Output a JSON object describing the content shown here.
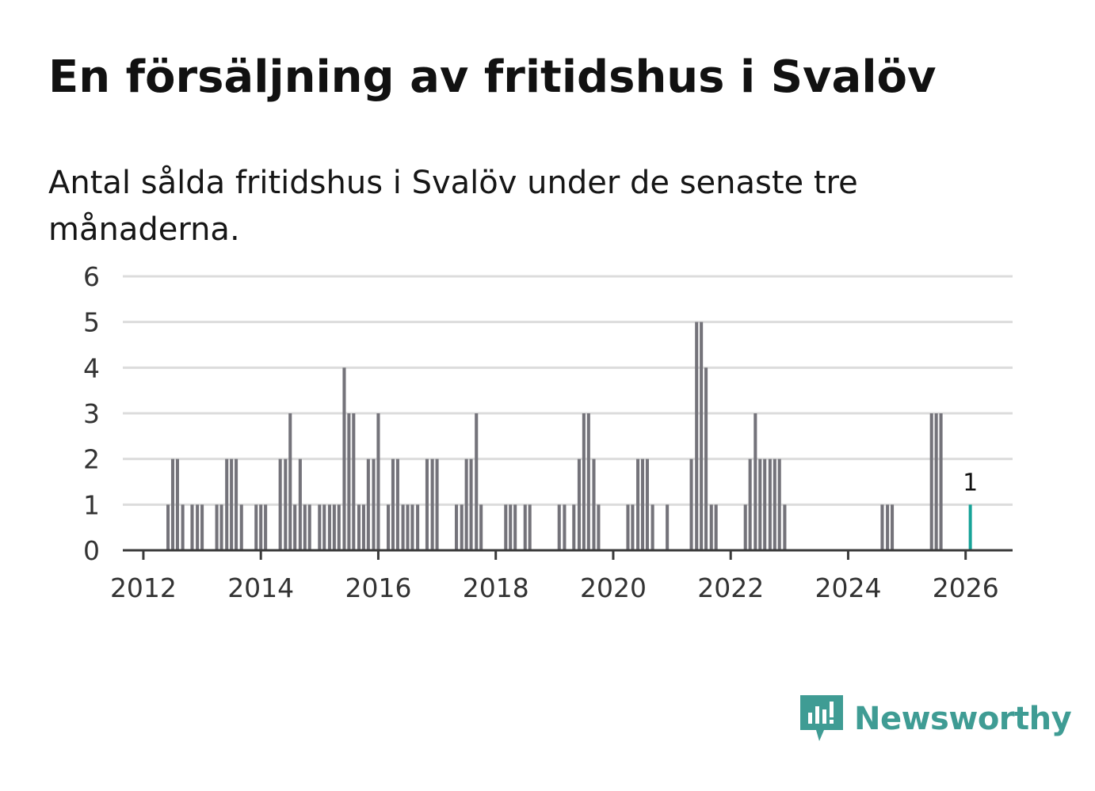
{
  "title": "En försäljning av fritidshus i Svalöv",
  "subtitle": "Antal sålda fritidshus i Svalöv under de senaste tre månaderna.",
  "brand": {
    "name": "Newsworthy",
    "color": "#3f9c94"
  },
  "colors": {
    "bar": "#74737a",
    "highlight": "#17a398",
    "grid": "#dcdcdc",
    "axis": "#3a3a3a",
    "text": "#333333"
  },
  "chart_data": {
    "type": "bar",
    "title": "En försäljning av fritidshus i Svalöv",
    "xlabel": "",
    "ylabel": "",
    "ylim": [
      0,
      6
    ],
    "yticks": [
      "0",
      "1",
      "2",
      "3",
      "4",
      "5",
      "6"
    ],
    "xlim": [
      2011.65,
      2026.8
    ],
    "xticks": [
      "2012",
      "2014",
      "2016",
      "2018",
      "2020",
      "2022",
      "2024",
      "2026"
    ],
    "bar_width_years": 0.055,
    "grid": true,
    "x": [
      2012.42,
      2012.5,
      2012.58,
      2012.67,
      2012.83,
      2012.92,
      2013.0,
      2013.25,
      2013.33,
      2013.42,
      2013.5,
      2013.58,
      2013.67,
      2013.92,
      2014.0,
      2014.08,
      2014.33,
      2014.42,
      2014.5,
      2014.58,
      2014.67,
      2014.75,
      2014.83,
      2015.0,
      2015.08,
      2015.17,
      2015.25,
      2015.33,
      2015.42,
      2015.5,
      2015.58,
      2015.67,
      2015.75,
      2015.83,
      2015.92,
      2016.0,
      2016.17,
      2016.25,
      2016.33,
      2016.42,
      2016.5,
      2016.58,
      2016.67,
      2016.83,
      2016.92,
      2017.0,
      2017.33,
      2017.42,
      2017.5,
      2017.58,
      2017.67,
      2017.75,
      2018.17,
      2018.25,
      2018.33,
      2018.5,
      2018.58,
      2019.08,
      2019.17,
      2019.33,
      2019.42,
      2019.5,
      2019.58,
      2019.67,
      2019.75,
      2020.25,
      2020.33,
      2020.42,
      2020.5,
      2020.58,
      2020.67,
      2020.92,
      2021.33,
      2021.42,
      2021.5,
      2021.58,
      2021.67,
      2021.75,
      2022.25,
      2022.33,
      2022.42,
      2022.5,
      2022.58,
      2022.67,
      2022.75,
      2022.83,
      2022.92,
      2024.58,
      2024.67,
      2024.75,
      2025.42,
      2025.5,
      2025.58,
      2026.08
    ],
    "values": [
      1,
      2,
      2,
      1,
      1,
      1,
      1,
      1,
      1,
      2,
      2,
      2,
      1,
      1,
      1,
      1,
      2,
      2,
      3,
      1,
      2,
      1,
      1,
      1,
      1,
      1,
      1,
      1,
      4,
      3,
      3,
      1,
      1,
      2,
      2,
      3,
      1,
      2,
      2,
      1,
      1,
      1,
      1,
      2,
      2,
      2,
      1,
      1,
      2,
      2,
      3,
      1,
      1,
      1,
      1,
      1,
      1,
      1,
      1,
      1,
      2,
      3,
      3,
      2,
      1,
      1,
      1,
      2,
      2,
      2,
      1,
      1,
      2,
      5,
      5,
      4,
      1,
      1,
      1,
      2,
      3,
      2,
      2,
      2,
      2,
      2,
      1,
      1,
      1,
      1,
      3,
      3,
      3,
      1
    ],
    "highlight": {
      "x": 2026.08,
      "value": 1,
      "label": "1"
    }
  }
}
